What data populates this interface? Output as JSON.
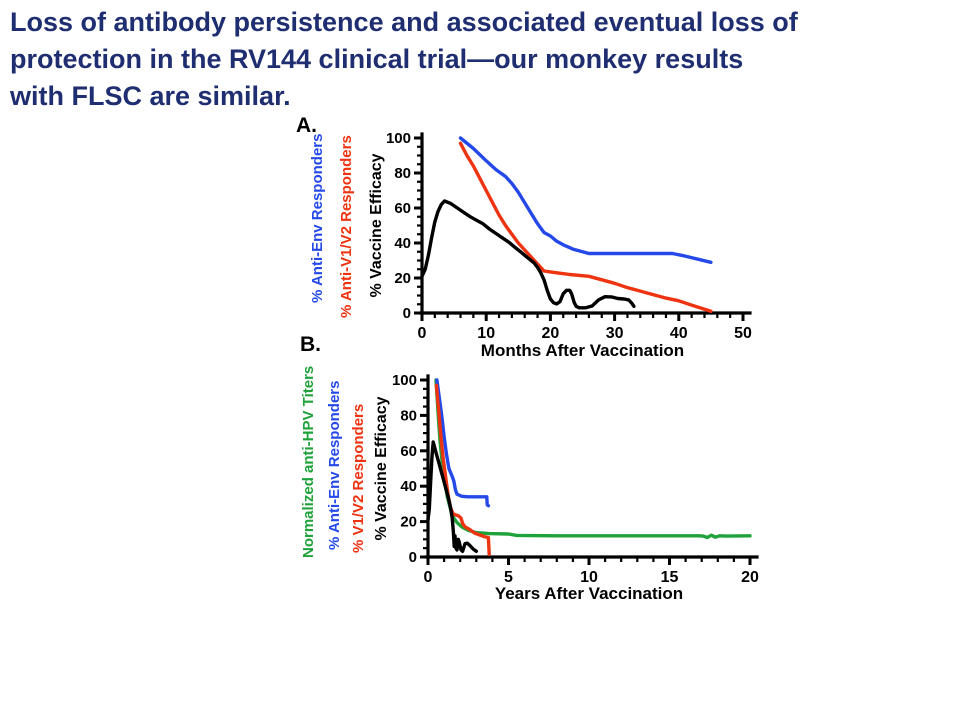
{
  "slide": {
    "title": "Loss of antibody persistence and associated eventual loss of\nprotection in the RV144 clinical trial—our monkey results\nwith FLSC are similar.",
    "title_color": "#1f2e70",
    "background_color": "#ffffff"
  },
  "chart_data": [
    {
      "type": "line",
      "panel_label": "A.",
      "xlabel": "Months After Vaccination",
      "ylabel": "% Vaccine Efficacy",
      "xlim": [
        0,
        50
      ],
      "ylim": [
        0,
        100
      ],
      "x_major_ticks": [
        0,
        10,
        20,
        30,
        40,
        50
      ],
      "x_minor_step": 2,
      "y_major_ticks": [
        0,
        20,
        40,
        60,
        80,
        100
      ],
      "y_minor_step": 5,
      "grid": false,
      "legend_position": "rotated-left-of-axis",
      "rotated_labels": [
        {
          "text": "% Anti-Env Responders",
          "color": "#2549e8"
        },
        {
          "text": "% Anti-V1/V2 Responders",
          "color": "#ee3311"
        }
      ],
      "series": [
        {
          "name": "% Anti-Env Responders",
          "color": "#2549e8",
          "points": [
            [
              6,
              100
            ],
            [
              8,
              94
            ],
            [
              10,
              87
            ],
            [
              11.5,
              82
            ],
            [
              13,
              78
            ],
            [
              14,
              74
            ],
            [
              15,
              69
            ],
            [
              16,
              63
            ],
            [
              17,
              57
            ],
            [
              18,
              51
            ],
            [
              19,
              46
            ],
            [
              20,
              44
            ],
            [
              21,
              41
            ],
            [
              22,
              39
            ],
            [
              23.5,
              36.5
            ],
            [
              26,
              34
            ],
            [
              39,
              34
            ],
            [
              41,
              32.5
            ],
            [
              45,
              29
            ]
          ]
        },
        {
          "name": "% Anti-V1/V2 Responders",
          "color": "#ee3311",
          "points": [
            [
              6,
              97
            ],
            [
              7,
              90
            ],
            [
              8,
              84
            ],
            [
              9,
              77
            ],
            [
              10,
              70
            ],
            [
              11,
              63
            ],
            [
              12,
              56
            ],
            [
              13,
              50
            ],
            [
              14,
              45
            ],
            [
              15,
              40
            ],
            [
              16,
              36
            ],
            [
              17,
              32
            ],
            [
              18,
              28
            ],
            [
              19,
              24
            ],
            [
              20,
              23.5
            ],
            [
              21,
              23
            ],
            [
              23,
              22
            ],
            [
              26,
              21
            ],
            [
              28,
              19
            ],
            [
              30,
              17
            ],
            [
              32,
              14.5
            ],
            [
              34,
              12.5
            ],
            [
              36,
              10.5
            ],
            [
              38,
              8.5
            ],
            [
              40,
              7
            ],
            [
              42,
              4.5
            ],
            [
              45,
              1
            ]
          ]
        },
        {
          "name": "% Vaccine Efficacy",
          "color": "#000000",
          "points": [
            [
              0,
              21
            ],
            [
              0.5,
              25
            ],
            [
              1,
              33
            ],
            [
              1.5,
              43
            ],
            [
              2,
              52
            ],
            [
              2.5,
              58
            ],
            [
              3,
              62
            ],
            [
              3.5,
              64
            ],
            [
              4.5,
              62.5
            ],
            [
              5.5,
              60
            ],
            [
              6.5,
              57.5
            ],
            [
              7.5,
              55
            ],
            [
              8.5,
              53
            ],
            [
              9.5,
              51
            ],
            [
              10.5,
              48
            ],
            [
              11.5,
              45.5
            ],
            [
              12.5,
              43
            ],
            [
              13.5,
              40.5
            ],
            [
              14.5,
              37.5
            ],
            [
              15.5,
              34.5
            ],
            [
              16.5,
              31.5
            ],
            [
              17.5,
              28.5
            ],
            [
              18,
              26
            ],
            [
              18.5,
              23
            ],
            [
              19,
              19
            ],
            [
              19.5,
              13
            ],
            [
              20,
              8
            ],
            [
              20.5,
              5.8
            ],
            [
              21,
              5.2
            ],
            [
              21.5,
              6.5
            ],
            [
              22,
              11
            ],
            [
              22.5,
              13
            ],
            [
              23,
              13
            ],
            [
              23.3,
              11
            ],
            [
              23.7,
              6
            ],
            [
              24,
              3.8
            ],
            [
              24.5,
              3
            ],
            [
              25.5,
              3
            ],
            [
              26.5,
              4
            ],
            [
              27.5,
              7.5
            ],
            [
              28.5,
              9.3
            ],
            [
              29.5,
              9.2
            ],
            [
              30.5,
              8.3
            ],
            [
              31.5,
              8
            ],
            [
              32.2,
              7.5
            ],
            [
              32.7,
              5.5
            ],
            [
              33,
              3.8
            ]
          ]
        }
      ]
    },
    {
      "type": "line",
      "panel_label": "B.",
      "xlabel": "Years After Vaccination",
      "ylabel": "% Vaccine Efficacy",
      "xlim": [
        0,
        20
      ],
      "ylim": [
        0,
        100
      ],
      "x_major_ticks": [
        0,
        5,
        10,
        15,
        20
      ],
      "x_minor_step": 1,
      "y_major_ticks": [
        0,
        20,
        40,
        60,
        80,
        100
      ],
      "y_minor_step": 5,
      "grid": false,
      "legend_position": "rotated-left-of-axis",
      "rotated_labels": [
        {
          "text": "Normalized anti-HPV Titers",
          "color": "#1fa23a"
        },
        {
          "text": "% Anti-Env Responders",
          "color": "#2549e8"
        },
        {
          "text": "% V1/V2 Responders",
          "color": "#ee3311"
        }
      ],
      "series": [
        {
          "name": "Normalized anti-HPV Titers",
          "color": "#1fa23a",
          "points": [
            [
              0.5,
              100
            ],
            [
              0.62,
              82
            ],
            [
              0.75,
              65
            ],
            [
              0.9,
              52
            ],
            [
              1.05,
              42
            ],
            [
              1.2,
              34
            ],
            [
              1.4,
              27
            ],
            [
              1.6,
              22
            ],
            [
              1.8,
              19.5
            ],
            [
              2.1,
              17
            ],
            [
              2.5,
              15
            ],
            [
              3,
              13.8
            ],
            [
              3.8,
              13.2
            ],
            [
              5,
              13
            ],
            [
              5.5,
              12.2
            ],
            [
              8,
              12
            ],
            [
              12,
              12
            ],
            [
              16.8,
              12
            ],
            [
              17.1,
              11.8
            ],
            [
              17.35,
              11
            ],
            [
              17.6,
              12.3
            ],
            [
              17.85,
              11.2
            ],
            [
              18.1,
              12
            ],
            [
              18.5,
              11.8
            ],
            [
              20,
              12
            ]
          ]
        },
        {
          "name": "% Anti-Env Responders",
          "color": "#2549e8",
          "points": [
            [
              0.55,
              100
            ],
            [
              0.7,
              90
            ],
            [
              0.85,
              80
            ],
            [
              1.0,
              68
            ],
            [
              1.15,
              58
            ],
            [
              1.3,
              50
            ],
            [
              1.5,
              45.5
            ],
            [
              1.6,
              43
            ],
            [
              1.7,
              38
            ],
            [
              1.8,
              35.5
            ],
            [
              2.1,
              34.3
            ],
            [
              2.5,
              34
            ],
            [
              3.0,
              34
            ],
            [
              3.65,
              34
            ],
            [
              3.68,
              29.5
            ],
            [
              3.75,
              29
            ]
          ]
        },
        {
          "name": "% V1/V2 Responders",
          "color": "#ee3311",
          "points": [
            [
              0.52,
              97
            ],
            [
              0.65,
              84
            ],
            [
              0.8,
              68
            ],
            [
              0.95,
              55
            ],
            [
              1.1,
              45
            ],
            [
              1.25,
              35
            ],
            [
              1.4,
              28
            ],
            [
              1.55,
              24.5
            ],
            [
              1.7,
              23.8
            ],
            [
              1.9,
              23.2
            ],
            [
              2.05,
              22
            ],
            [
              2.15,
              19
            ],
            [
              2.3,
              17
            ],
            [
              2.6,
              15.5
            ],
            [
              2.9,
              13.5
            ],
            [
              3.2,
              12.5
            ],
            [
              3.5,
              11.5
            ],
            [
              3.75,
              11
            ],
            [
              3.8,
              1.5
            ]
          ]
        },
        {
          "name": "% Vaccine Efficacy",
          "color": "#000000",
          "points": [
            [
              0,
              21
            ],
            [
              0.08,
              27
            ],
            [
              0.16,
              42
            ],
            [
              0.25,
              57
            ],
            [
              0.32,
              65
            ],
            [
              0.4,
              62.5
            ],
            [
              0.5,
              59
            ],
            [
              0.65,
              54
            ],
            [
              0.8,
              49
            ],
            [
              0.95,
              44
            ],
            [
              1.1,
              39
            ],
            [
              1.25,
              34
            ],
            [
              1.4,
              28
            ],
            [
              1.5,
              22
            ],
            [
              1.58,
              14
            ],
            [
              1.63,
              6
            ],
            [
              1.68,
              12
            ],
            [
              1.73,
              5
            ],
            [
              1.8,
              4
            ],
            [
              1.88,
              10
            ],
            [
              1.95,
              8
            ],
            [
              2.05,
              4
            ],
            [
              2.15,
              3.2
            ],
            [
              2.3,
              7.5
            ],
            [
              2.45,
              7.8
            ],
            [
              2.6,
              6.5
            ],
            [
              2.8,
              4.5
            ],
            [
              3.0,
              3.2
            ]
          ]
        }
      ]
    }
  ]
}
